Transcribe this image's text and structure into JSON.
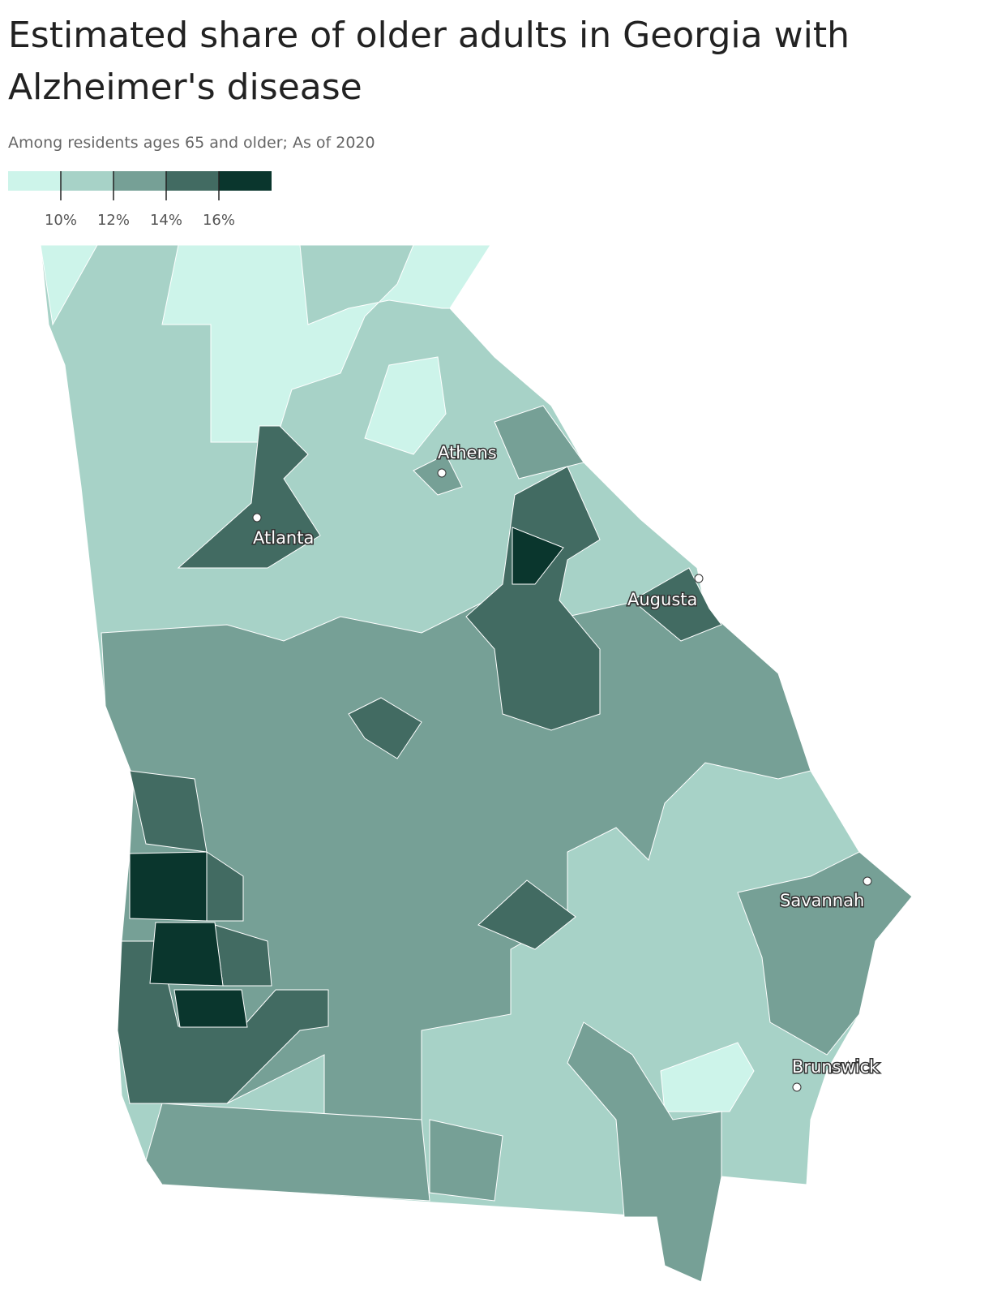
{
  "chart_data": {
    "type": "choropleth",
    "title": "Estimated share of older adults in Georgia with Alzheimer's disease",
    "subtitle": "Among residents ages 65 and older; As of 2020",
    "legend": {
      "colors": [
        "#cdf4ea",
        "#a7d2c7",
        "#76a096",
        "#426b62",
        "#0a362d"
      ],
      "xlim": [
        8,
        18
      ],
      "xticks": [
        {
          "value": 10,
          "label": "10%"
        },
        {
          "value": 12,
          "label": "12%"
        },
        {
          "value": 14,
          "label": "14%"
        },
        {
          "value": 16,
          "label": "16%"
        }
      ]
    },
    "cities": [
      "Athens",
      "Atlanta",
      "Augusta",
      "Savannah",
      "Brunswick"
    ]
  }
}
